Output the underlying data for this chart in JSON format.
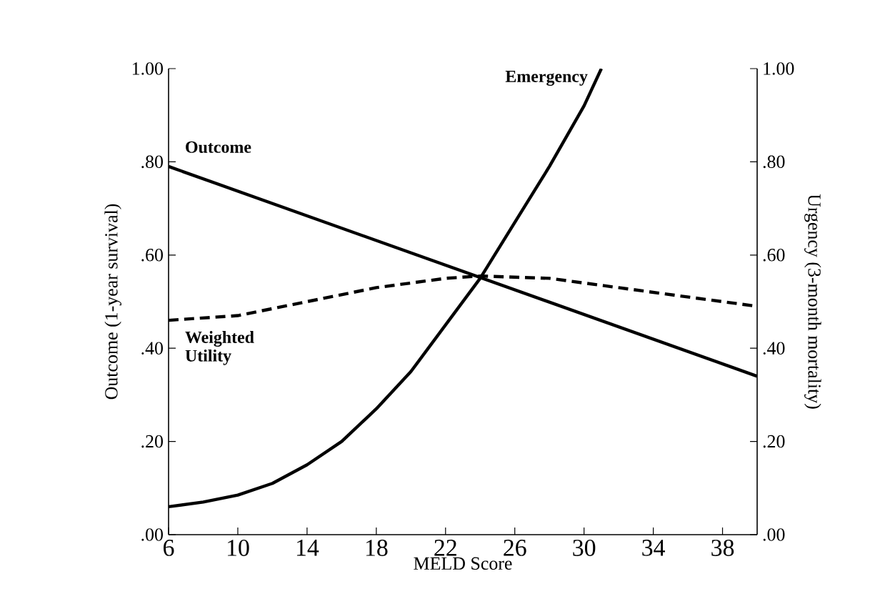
{
  "chart_data": {
    "type": "line",
    "xlabel": "MELD Score",
    "ylabel": "Outcome (1-year survival)",
    "y2label": "Urgency (3-month mortality)",
    "xlim": [
      6,
      40
    ],
    "xticks": [
      6,
      10,
      14,
      18,
      22,
      26,
      30,
      34,
      38
    ],
    "ylim": [
      0,
      1
    ],
    "yticks": [
      {
        "value": 0,
        "label": ".00"
      },
      {
        "value": 0.2,
        "label": ".20"
      },
      {
        "value": 0.4,
        "label": ".40"
      },
      {
        "value": 0.6,
        "label": ".60"
      },
      {
        "value": 0.8,
        "label": ".80"
      },
      {
        "value": 1,
        "label": "1.00"
      }
    ],
    "y2lim": [
      0,
      1
    ],
    "y2ticks": [
      {
        "value": 0,
        "label": ".00"
      },
      {
        "value": 0.2,
        "label": ".20"
      },
      {
        "value": 0.4,
        "label": ".40"
      },
      {
        "value": 0.6,
        "label": ".60"
      },
      {
        "value": 0.8,
        "label": ".80"
      },
      {
        "value": 1,
        "label": "1.00"
      }
    ],
    "grid": false,
    "legend": false,
    "marker": "none",
    "series": [
      {
        "name": "Outcome",
        "color": "#000000",
        "line_style": "solid",
        "x": [
          6,
          40
        ],
        "values": [
          0.79,
          0.34
        ]
      },
      {
        "name": "Weighted Utility",
        "color": "#000000",
        "line_style": "dashed",
        "x": [
          6,
          10,
          14,
          18,
          22,
          24,
          28,
          32,
          36,
          40
        ],
        "values": [
          0.46,
          0.47,
          0.5,
          0.53,
          0.55,
          0.555,
          0.55,
          0.53,
          0.51,
          0.49
        ]
      },
      {
        "name": "Emergency",
        "color": "#000000",
        "line_style": "solid",
        "axis": "y2",
        "x": [
          6,
          8,
          10,
          12,
          14,
          16,
          18,
          20,
          22,
          24,
          26,
          28,
          30,
          31
        ],
        "values": [
          0.06,
          0.07,
          0.085,
          0.11,
          0.15,
          0.2,
          0.27,
          0.35,
          0.45,
          0.55,
          0.67,
          0.79,
          0.92,
          1.0
        ]
      }
    ]
  }
}
